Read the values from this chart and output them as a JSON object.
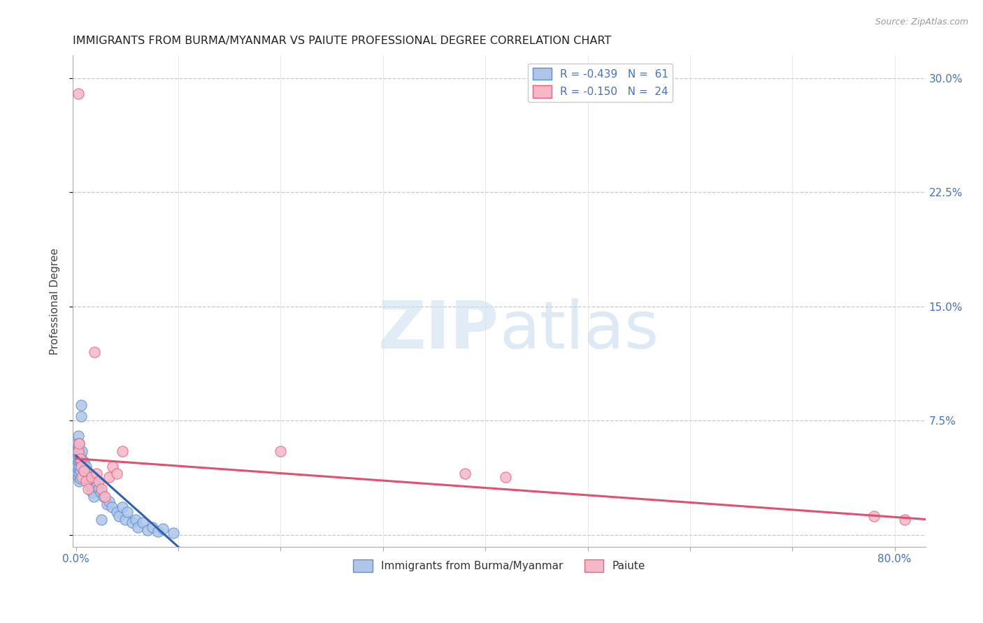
{
  "title": "IMMIGRANTS FROM BURMA/MYANMAR VS PAIUTE PROFESSIONAL DEGREE CORRELATION CHART",
  "source": "Source: ZipAtlas.com",
  "ylabel": "Professional Degree",
  "x_ticks": [
    0.0,
    0.1,
    0.2,
    0.3,
    0.4,
    0.5,
    0.6,
    0.7,
    0.8
  ],
  "x_tick_labels": [
    "0.0%",
    "",
    "",
    "",
    "",
    "",
    "",
    "",
    "80.0%"
  ],
  "y_ticks": [
    0.0,
    0.075,
    0.15,
    0.225,
    0.3
  ],
  "y_tick_labels_right": [
    "",
    "7.5%",
    "15.0%",
    "22.5%",
    "30.0%"
  ],
  "xlim": [
    -0.003,
    0.83
  ],
  "ylim": [
    -0.008,
    0.315
  ],
  "blue_color": "#aec6e8",
  "pink_color": "#f5b8c8",
  "blue_edge_color": "#5b8fd4",
  "pink_edge_color": "#e8637a",
  "blue_line_color": "#3060b0",
  "pink_line_color": "#e05070",
  "legend_label_blue": "R = -0.439   N =  61",
  "legend_label_pink": "R = -0.150   N =  24",
  "legend_series_blue": "Immigrants from Burma/Myanmar",
  "legend_series_pink": "Paiute",
  "blue_intercept": 0.052,
  "blue_slope": -0.6,
  "pink_intercept": 0.05,
  "pink_slope": -0.048,
  "marker_size": 120,
  "blue_points": [
    [
      0.001,
      0.06
    ],
    [
      0.001,
      0.055
    ],
    [
      0.001,
      0.05
    ],
    [
      0.001,
      0.045
    ],
    [
      0.002,
      0.065
    ],
    [
      0.002,
      0.058
    ],
    [
      0.002,
      0.052
    ],
    [
      0.002,
      0.048
    ],
    [
      0.002,
      0.043
    ],
    [
      0.002,
      0.038
    ],
    [
      0.003,
      0.06
    ],
    [
      0.003,
      0.055
    ],
    [
      0.003,
      0.05
    ],
    [
      0.003,
      0.045
    ],
    [
      0.003,
      0.04
    ],
    [
      0.003,
      0.035
    ],
    [
      0.004,
      0.052
    ],
    [
      0.004,
      0.047
    ],
    [
      0.004,
      0.042
    ],
    [
      0.004,
      0.037
    ],
    [
      0.005,
      0.085
    ],
    [
      0.005,
      0.078
    ],
    [
      0.005,
      0.05
    ],
    [
      0.005,
      0.045
    ],
    [
      0.006,
      0.055
    ],
    [
      0.006,
      0.048
    ],
    [
      0.007,
      0.043
    ],
    [
      0.008,
      0.048
    ],
    [
      0.009,
      0.042
    ],
    [
      0.01,
      0.045
    ],
    [
      0.011,
      0.04
    ],
    [
      0.012,
      0.038
    ],
    [
      0.013,
      0.035
    ],
    [
      0.014,
      0.032
    ],
    [
      0.015,
      0.03
    ],
    [
      0.016,
      0.028
    ],
    [
      0.017,
      0.025
    ],
    [
      0.018,
      0.038
    ],
    [
      0.019,
      0.035
    ],
    [
      0.02,
      0.032
    ],
    [
      0.022,
      0.03
    ],
    [
      0.024,
      0.028
    ],
    [
      0.025,
      0.01
    ],
    [
      0.027,
      0.025
    ],
    [
      0.03,
      0.02
    ],
    [
      0.032,
      0.022
    ],
    [
      0.035,
      0.018
    ],
    [
      0.04,
      0.015
    ],
    [
      0.042,
      0.012
    ],
    [
      0.045,
      0.018
    ],
    [
      0.048,
      0.01
    ],
    [
      0.05,
      0.015
    ],
    [
      0.055,
      0.008
    ],
    [
      0.058,
      0.01
    ],
    [
      0.06,
      0.005
    ],
    [
      0.065,
      0.008
    ],
    [
      0.07,
      0.003
    ],
    [
      0.075,
      0.005
    ],
    [
      0.08,
      0.002
    ],
    [
      0.085,
      0.004
    ],
    [
      0.095,
      0.001
    ]
  ],
  "pink_points": [
    [
      0.0025,
      0.29
    ],
    [
      0.002,
      0.055
    ],
    [
      0.003,
      0.06
    ],
    [
      0.004,
      0.05
    ],
    [
      0.005,
      0.045
    ],
    [
      0.006,
      0.038
    ],
    [
      0.008,
      0.042
    ],
    [
      0.01,
      0.035
    ],
    [
      0.018,
      0.12
    ],
    [
      0.012,
      0.03
    ],
    [
      0.015,
      0.038
    ],
    [
      0.02,
      0.04
    ],
    [
      0.022,
      0.035
    ],
    [
      0.025,
      0.03
    ],
    [
      0.028,
      0.025
    ],
    [
      0.032,
      0.038
    ],
    [
      0.036,
      0.045
    ],
    [
      0.04,
      0.04
    ],
    [
      0.045,
      0.055
    ],
    [
      0.2,
      0.055
    ],
    [
      0.38,
      0.04
    ],
    [
      0.42,
      0.038
    ],
    [
      0.78,
      0.012
    ],
    [
      0.81,
      0.01
    ]
  ]
}
